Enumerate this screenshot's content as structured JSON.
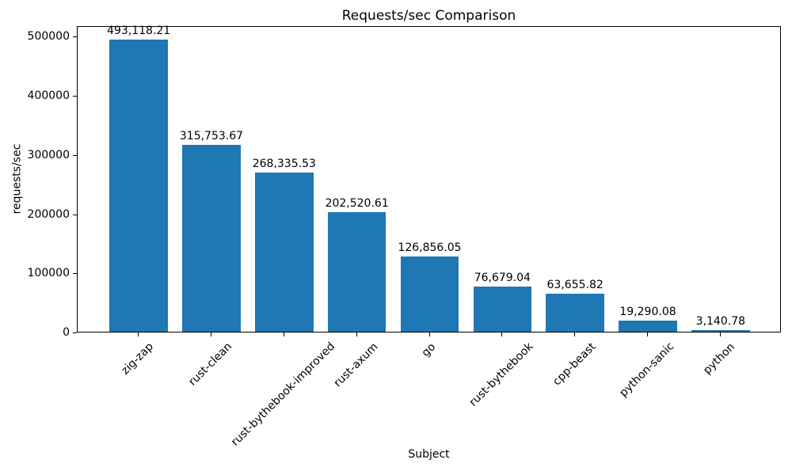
{
  "chart_data": {
    "type": "bar",
    "title": "Requests/sec Comparison",
    "xlabel": "Subject",
    "ylabel": "requests/sec",
    "categories": [
      "zig-zap",
      "rust-clean",
      "rust-bythebook-improved",
      "rust-axum",
      "go",
      "rust-bythebook",
      "cpp-beast",
      "python-sanic",
      "python"
    ],
    "values": [
      493118.21,
      315753.67,
      268335.53,
      202520.61,
      126856.05,
      76679.04,
      63655.82,
      19290.08,
      3140.78
    ],
    "value_labels": [
      "493,118.21",
      "315,753.67",
      "268,335.53",
      "202,520.61",
      "126,856.05",
      "76,679.04",
      "63,655.82",
      "19,290.08",
      "3,140.78"
    ],
    "yticks": [
      0,
      100000,
      200000,
      300000,
      400000,
      500000
    ],
    "ytick_labels": [
      "0",
      "100000",
      "200000",
      "300000",
      "400000",
      "500000"
    ],
    "ylim": [
      0,
      517774
    ],
    "grid": false,
    "legend": null,
    "colors": {
      "bar": "#1f77b4",
      "text": "#000000",
      "spine": "#000000",
      "background": "#ffffff"
    }
  }
}
